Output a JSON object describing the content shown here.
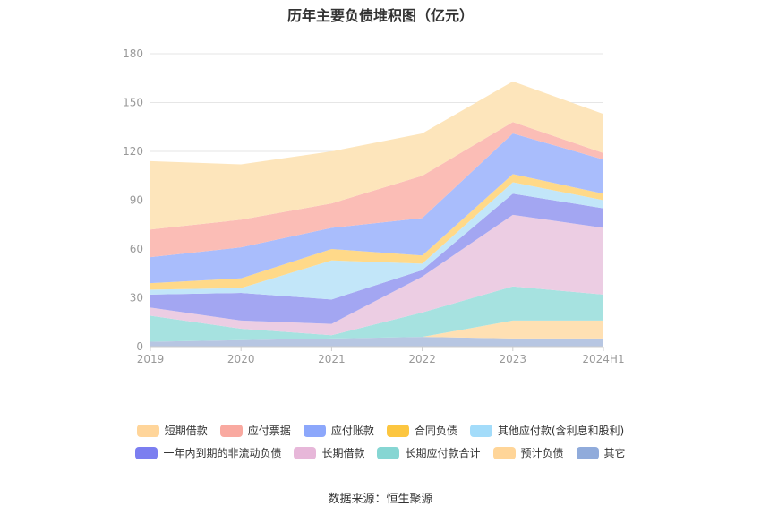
{
  "chart_data": {
    "type": "area",
    "title": "历年主要负债堆积图（亿元）",
    "categories": [
      "2019",
      "2020",
      "2021",
      "2022",
      "2023",
      "2024H1"
    ],
    "ylim": [
      0,
      180
    ],
    "yticks": [
      0,
      30,
      60,
      90,
      120,
      150,
      180
    ],
    "stacked": true,
    "grid": true,
    "legend_position": "bottom",
    "series": [
      {
        "name": "其它",
        "color": "#b7c6e2",
        "values": [
          3,
          4,
          5,
          6,
          5,
          5
        ]
      },
      {
        "name": "预计负债",
        "color": "#ffe0b3",
        "values": [
          0,
          0,
          0,
          0,
          11,
          11
        ]
      },
      {
        "name": "长期应付款合计",
        "color": "#a6e2e0",
        "values": [
          16,
          7,
          2,
          15,
          21,
          16
        ]
      },
      {
        "name": "长期借款",
        "color": "#eccde3",
        "values": [
          5,
          5,
          7,
          22,
          44,
          41
        ]
      },
      {
        "name": "一年内到期的非流动负债",
        "color": "#a3a6f2",
        "values": [
          8,
          17,
          15,
          4,
          13,
          12
        ]
      },
      {
        "name": "其他应付款(含利息和股利)",
        "color": "#c2e6f9",
        "values": [
          3,
          3,
          24,
          4,
          7,
          5
        ]
      },
      {
        "name": "合同负债",
        "color": "#ffd989",
        "values": [
          4,
          6,
          7,
          5,
          5,
          4
        ]
      },
      {
        "name": "应付账款",
        "color": "#a9bdfc",
        "values": [
          16,
          19,
          13,
          23,
          25,
          21
        ]
      },
      {
        "name": "应付票据",
        "color": "#fbbdb6",
        "values": [
          17,
          17,
          15,
          26,
          7,
          4
        ]
      },
      {
        "name": "短期借款",
        "color": "#fde5bb",
        "values": [
          42,
          34,
          32,
          26,
          25,
          24
        ]
      }
    ]
  },
  "legend": {
    "row1": [
      {
        "label": "短期借款",
        "color": "#ffd59a"
      },
      {
        "label": "应付票据",
        "color": "#f9a9a0"
      },
      {
        "label": "应付账款",
        "color": "#8ca7fb"
      },
      {
        "label": "合同负债",
        "color": "#fcc640"
      },
      {
        "label": "其他应付款(含利息和股利)",
        "color": "#a3dcfa"
      }
    ],
    "row2": [
      {
        "label": "一年内到期的非流动负债",
        "color": "#7b7ef0"
      },
      {
        "label": "长期借款",
        "color": "#e7b7d9"
      },
      {
        "label": "长期应付款合计",
        "color": "#86d6d3"
      },
      {
        "label": "预计负债",
        "color": "#ffd598"
      },
      {
        "label": "其它",
        "color": "#90abdb"
      }
    ]
  },
  "source": "数据来源：恒生聚源"
}
